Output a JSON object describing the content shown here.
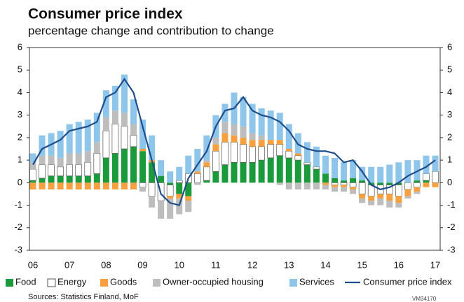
{
  "chart_data": {
    "type": "stacked_bar_line",
    "title": "Consumer price index",
    "subtitle": "percentage change and contribution to change",
    "source": "Sources: Statistics Finland, MoF",
    "code": "VM34170",
    "categories": [
      "06",
      null,
      null,
      null,
      "07",
      null,
      null,
      null,
      "08",
      null,
      null,
      null,
      "09",
      null,
      null,
      null,
      "10",
      null,
      null,
      null,
      "11",
      null,
      null,
      null,
      "12",
      null,
      null,
      null,
      "13",
      null,
      null,
      null,
      "14",
      null,
      null,
      null,
      "15",
      null,
      null,
      null,
      "16",
      null,
      null,
      null,
      "17"
    ],
    "ylim": [
      -3,
      6
    ],
    "yticks": [
      -3,
      -2,
      -1,
      0,
      1,
      2,
      3,
      4,
      5,
      6
    ],
    "series": [
      {
        "name": "Food",
        "color": "#1a9a3a",
        "kind": "bar",
        "values": [
          0.1,
          0.2,
          0.3,
          0.3,
          0.3,
          0.3,
          0.3,
          0.4,
          1.1,
          1.3,
          1.5,
          1.6,
          1.4,
          0.9,
          0.3,
          -0.1,
          -0.5,
          -0.6,
          0,
          0.1,
          0.5,
          0.8,
          0.9,
          0.9,
          0.9,
          1.0,
          1.1,
          1.2,
          1.1,
          1.0,
          0.8,
          0.6,
          0.4,
          0.2,
          0.1,
          0.2,
          0.1,
          -0.1,
          -0.1,
          -0.1,
          -0.1,
          0,
          0.1,
          0.1,
          0
        ]
      },
      {
        "name": "Energy",
        "color": "#ffffff",
        "kind": "bar",
        "values": [
          0.5,
          0.6,
          0.5,
          0.4,
          0.5,
          0.5,
          0.6,
          0.9,
          1.2,
          1.3,
          1.0,
          0.5,
          -0.2,
          -0.6,
          -0.8,
          -0.5,
          0.1,
          0.4,
          0.4,
          0.6,
          0.9,
          1.0,
          0.9,
          0.8,
          0.7,
          0.6,
          0.6,
          0.5,
          0.3,
          0.2,
          0.1,
          0.1,
          0,
          -0.1,
          -0.1,
          -0.2,
          -0.5,
          -0.5,
          -0.4,
          -0.4,
          -0.5,
          -0.3,
          -0.2,
          0.3,
          0.5
        ]
      },
      {
        "name": "Goods",
        "color": "#f7a040",
        "kind": "bar",
        "values": [
          -0.3,
          -0.3,
          -0.3,
          -0.3,
          -0.3,
          -0.3,
          -0.3,
          -0.3,
          -0.3,
          -0.3,
          -0.3,
          -0.3,
          0.1,
          0.1,
          0,
          -0.1,
          -0.2,
          -0.2,
          0.1,
          0.2,
          0.3,
          0.4,
          0.3,
          0.3,
          0.3,
          0.3,
          0.2,
          0.2,
          0.1,
          0.1,
          0,
          0,
          -0.1,
          -0.1,
          -0.1,
          -0.1,
          -0.2,
          -0.2,
          -0.2,
          -0.3,
          -0.3,
          -0.3,
          -0.2,
          -0.2,
          -0.2
        ]
      },
      {
        "name": "Owner-occupied housing",
        "color": "#bdbdbd",
        "kind": "bar",
        "values": [
          0.3,
          0.4,
          0.4,
          0.4,
          0.5,
          0.5,
          0.5,
          0.5,
          0.6,
          0.6,
          0.6,
          0.5,
          -0.2,
          -0.5,
          -0.8,
          -0.9,
          -0.7,
          -0.5,
          -0.1,
          0.1,
          0.3,
          0.5,
          0.5,
          0.5,
          0.3,
          0.2,
          0,
          -0.1,
          -0.3,
          -0.3,
          -0.3,
          -0.3,
          -0.2,
          -0.2,
          -0.2,
          -0.2,
          -0.2,
          -0.2,
          -0.3,
          -0.3,
          -0.2,
          -0.1,
          -0.1,
          0,
          0
        ]
      },
      {
        "name": "Services",
        "color": "#8ec5ea",
        "kind": "bar",
        "values": [
          0.4,
          0.9,
          1.0,
          1.2,
          1.3,
          1.4,
          1.4,
          1.3,
          1.2,
          1.1,
          1.7,
          1.1,
          1.3,
          1.1,
          0.7,
          0.5,
          0.6,
          0.8,
          1.0,
          1.1,
          1.0,
          0.8,
          1.4,
          1.3,
          1.3,
          1.2,
          1.3,
          1.2,
          1.1,
          0.9,
          0.9,
          0.9,
          0.8,
          0.9,
          0.8,
          0.8,
          0.6,
          0.7,
          0.7,
          0.8,
          0.9,
          1.0,
          0.9,
          0.8,
          0.7
        ]
      },
      {
        "name": "Consumer price index",
        "color": "#1f4e8c",
        "kind": "line",
        "values": [
          0.8,
          1.5,
          1.7,
          1.9,
          2.3,
          2.4,
          2.5,
          2.7,
          3.8,
          4.0,
          4.6,
          4.0,
          2.5,
          1.0,
          -0.5,
          -0.9,
          -1.0,
          0.2,
          0.8,
          1.4,
          2.5,
          3.2,
          3.3,
          3.8,
          3.2,
          3.0,
          2.9,
          2.7,
          2.3,
          1.7,
          1.5,
          1.4,
          1.4,
          1.3,
          0.9,
          1.0,
          0.5,
          -0.1,
          -0.3,
          -0.2,
          0,
          0.3,
          0.5,
          0.7,
          1.0
        ]
      }
    ]
  }
}
